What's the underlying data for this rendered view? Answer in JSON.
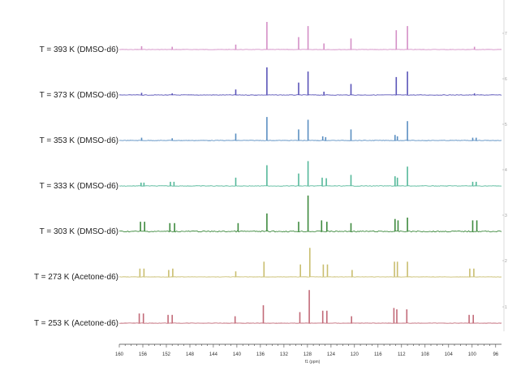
{
  "chart_data": {
    "type": "line",
    "title": "",
    "xlabel": "f1 (ppm)",
    "ylabel": "",
    "xlim": [
      160,
      95
    ],
    "x_reversed": true,
    "x_ticks": [
      160,
      156,
      152,
      148,
      144,
      140,
      136,
      132,
      128,
      124,
      120,
      116,
      112,
      108,
      104,
      100,
      96
    ],
    "right_axis_ticks": [
      "7",
      "6",
      "5",
      "4",
      "3",
      "2",
      "1"
    ],
    "series": [
      {
        "name": "T = 393 K (DMSO-d6)",
        "color": "#d48fc6",
        "noise": 0.3,
        "peaks": [
          [
            156.2,
            0.12
          ],
          [
            151.0,
            0.1
          ],
          [
            140.2,
            0.18
          ],
          [
            134.9,
            1.0
          ],
          [
            129.5,
            0.45
          ],
          [
            127.9,
            0.85
          ],
          [
            125.2,
            0.22
          ],
          [
            120.6,
            0.4
          ],
          [
            112.9,
            0.7
          ],
          [
            111.0,
            0.85
          ],
          [
            99.6,
            0.1
          ]
        ]
      },
      {
        "name": "T = 373 K (DMSO-d6)",
        "color": "#5a54b8",
        "noise": 0.4,
        "peaks": [
          [
            156.2,
            0.08
          ],
          [
            151.0,
            0.06
          ],
          [
            140.2,
            0.2
          ],
          [
            134.9,
            1.0
          ],
          [
            129.5,
            0.45
          ],
          [
            127.9,
            0.85
          ],
          [
            125.2,
            0.12
          ],
          [
            120.6,
            0.4
          ],
          [
            112.9,
            0.65
          ],
          [
            111.0,
            0.85
          ],
          [
            99.6,
            0.06
          ]
        ]
      },
      {
        "name": "T = 353 K (DMSO-d6)",
        "color": "#5b8fc2",
        "noise": 0.35,
        "peaks": [
          [
            156.2,
            0.1
          ],
          [
            151.0,
            0.08
          ],
          [
            140.2,
            0.25
          ],
          [
            134.9,
            0.85
          ],
          [
            129.5,
            0.4
          ],
          [
            127.9,
            0.75
          ],
          [
            125.4,
            0.15
          ],
          [
            124.9,
            0.12
          ],
          [
            120.6,
            0.4
          ],
          [
            113.1,
            0.2
          ],
          [
            112.7,
            0.15
          ],
          [
            111.0,
            0.7
          ],
          [
            99.9,
            0.1
          ],
          [
            99.3,
            0.1
          ]
        ]
      },
      {
        "name": "T = 333 K (DMSO-d6)",
        "color": "#55b89a",
        "noise": 0.4,
        "peaks": [
          [
            156.3,
            0.12
          ],
          [
            155.8,
            0.12
          ],
          [
            151.3,
            0.15
          ],
          [
            150.7,
            0.15
          ],
          [
            140.2,
            0.3
          ],
          [
            134.9,
            0.75
          ],
          [
            129.5,
            0.45
          ],
          [
            127.9,
            0.9
          ],
          [
            125.5,
            0.3
          ],
          [
            124.8,
            0.28
          ],
          [
            120.6,
            0.4
          ],
          [
            113.1,
            0.35
          ],
          [
            112.7,
            0.3
          ],
          [
            111.0,
            0.7
          ],
          [
            99.9,
            0.15
          ],
          [
            99.3,
            0.15
          ]
        ]
      },
      {
        "name": "T = 303 K (DMSO-d6)",
        "color": "#3e8a3e",
        "noise": 0.9,
        "peaks": [
          [
            156.4,
            0.35
          ],
          [
            155.7,
            0.35
          ],
          [
            151.4,
            0.3
          ],
          [
            150.6,
            0.3
          ],
          [
            139.8,
            0.3
          ],
          [
            134.9,
            0.65
          ],
          [
            129.5,
            0.35
          ],
          [
            127.9,
            1.3
          ],
          [
            125.6,
            0.4
          ],
          [
            124.7,
            0.35
          ],
          [
            120.6,
            0.3
          ],
          [
            113.1,
            0.45
          ],
          [
            112.6,
            0.4
          ],
          [
            111.0,
            0.5
          ],
          [
            99.9,
            0.4
          ],
          [
            99.2,
            0.4
          ]
        ]
      },
      {
        "name": "T = 273 K (Acetone-d6)",
        "color": "#c9be6f",
        "noise": 0.25,
        "peaks": [
          [
            156.5,
            0.3
          ],
          [
            155.8,
            0.3
          ],
          [
            151.6,
            0.25
          ],
          [
            150.9,
            0.3
          ],
          [
            140.2,
            0.2
          ],
          [
            135.4,
            0.55
          ],
          [
            129.2,
            0.45
          ],
          [
            127.6,
            1.05
          ],
          [
            125.3,
            0.45
          ],
          [
            124.6,
            0.45
          ],
          [
            120.4,
            0.25
          ],
          [
            113.2,
            0.55
          ],
          [
            112.7,
            0.55
          ],
          [
            111.0,
            0.55
          ],
          [
            100.4,
            0.3
          ],
          [
            99.7,
            0.3
          ]
        ]
      },
      {
        "name": "T = 253 K (Acetone-d6)",
        "color": "#c26a78",
        "noise": 0.25,
        "peaks": [
          [
            156.6,
            0.35
          ],
          [
            155.9,
            0.35
          ],
          [
            151.7,
            0.3
          ],
          [
            151.0,
            0.3
          ],
          [
            140.3,
            0.25
          ],
          [
            135.5,
            0.65
          ],
          [
            129.3,
            0.4
          ],
          [
            127.7,
            1.2
          ],
          [
            125.4,
            0.45
          ],
          [
            124.7,
            0.45
          ],
          [
            120.5,
            0.25
          ],
          [
            113.3,
            0.55
          ],
          [
            112.8,
            0.5
          ],
          [
            111.1,
            0.5
          ],
          [
            100.5,
            0.3
          ],
          [
            99.8,
            0.3
          ]
        ]
      }
    ]
  }
}
